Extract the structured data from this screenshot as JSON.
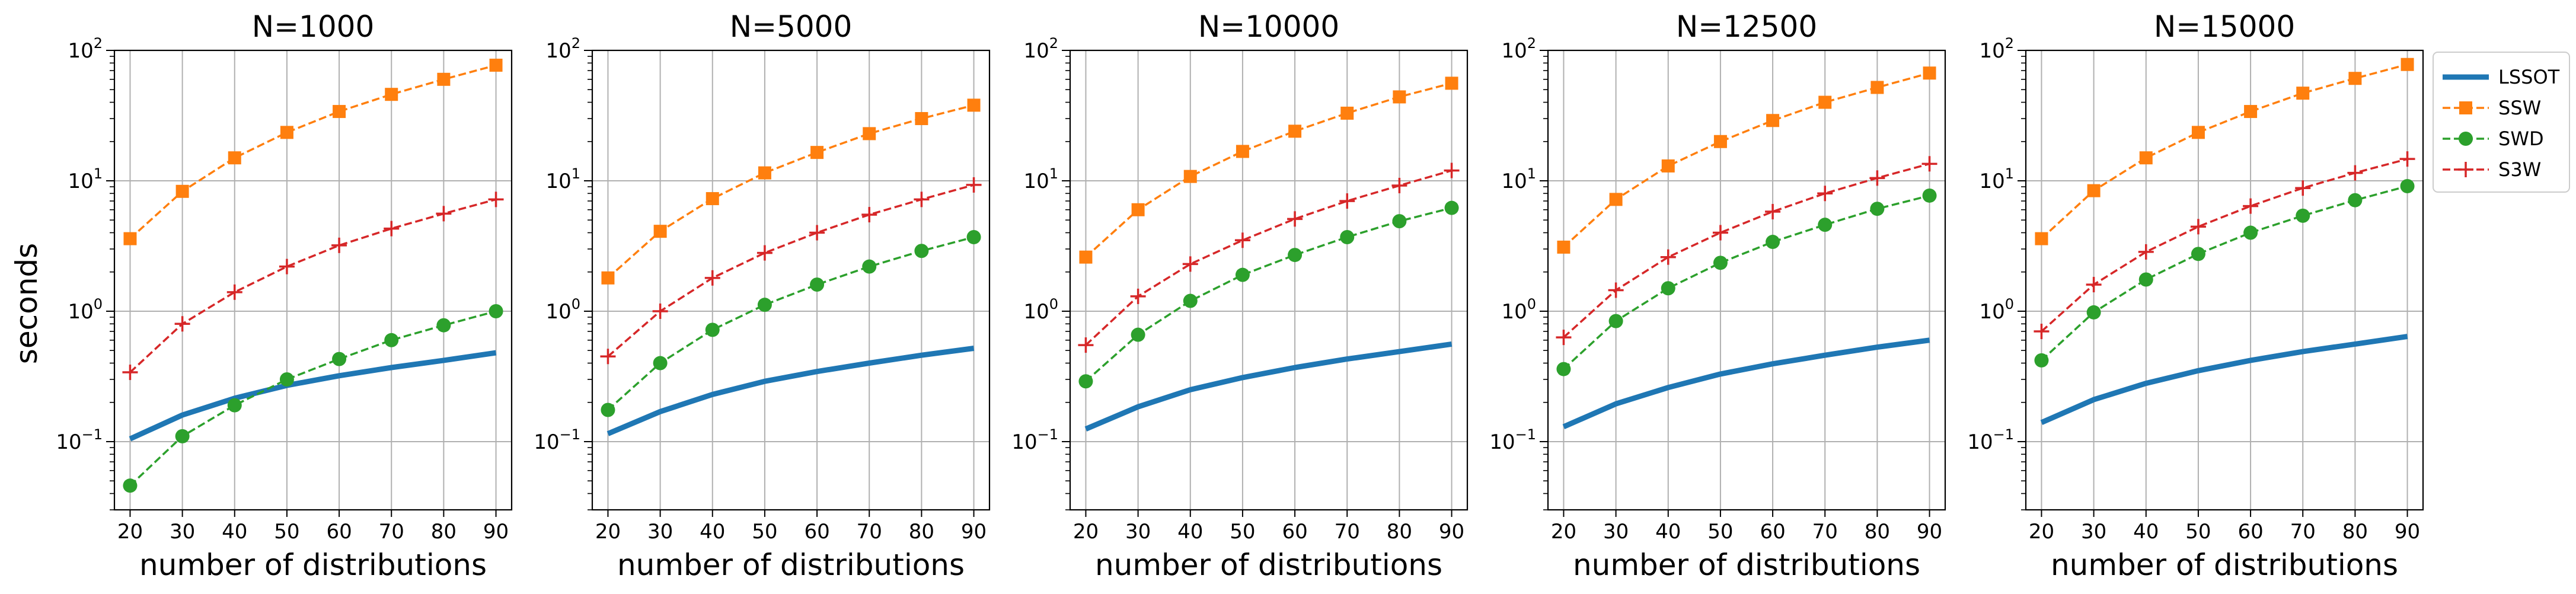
{
  "figure": {
    "ylabel": "seconds",
    "xlabel": "number of distributions",
    "yscale": "log",
    "ylim": [
      0.03,
      100
    ],
    "y_ticks": [
      {
        "value": 0.1,
        "base": "10",
        "exp": "−1"
      },
      {
        "value": 1,
        "base": "10",
        "exp": "0"
      },
      {
        "value": 10,
        "base": "10",
        "exp": "1"
      },
      {
        "value": 100,
        "base": "10",
        "exp": "2"
      }
    ],
    "x_ticks": [
      20,
      30,
      40,
      50,
      60,
      70,
      80,
      90
    ],
    "xlim": [
      17,
      93
    ],
    "grid": true,
    "legend_position": "outside-right",
    "legend": [
      {
        "name": "LSSOT",
        "color": "#1f77b4",
        "style": "solid",
        "marker": "none"
      },
      {
        "name": "SSW",
        "color": "#ff7f0e",
        "style": "dashed",
        "marker": "square"
      },
      {
        "name": "SWD",
        "color": "#2ca02c",
        "style": "dashed",
        "marker": "circle"
      },
      {
        "name": "S3W",
        "color": "#d62728",
        "style": "dashed",
        "marker": "plus"
      }
    ]
  },
  "chart_data": [
    {
      "type": "line",
      "title": "N=1000",
      "x": [
        20,
        30,
        40,
        50,
        60,
        70,
        80,
        90
      ],
      "series": [
        {
          "name": "LSSOT",
          "values": [
            0.105,
            0.16,
            0.215,
            0.27,
            0.32,
            0.37,
            0.42,
            0.48
          ]
        },
        {
          "name": "SSW",
          "values": [
            3.6,
            8.3,
            15.0,
            23.5,
            34.0,
            46.0,
            60.0,
            77.0
          ]
        },
        {
          "name": "SWD",
          "values": [
            0.046,
            0.11,
            0.19,
            0.3,
            0.43,
            0.6,
            0.78,
            1.0
          ]
        },
        {
          "name": "S3W",
          "values": [
            0.34,
            0.8,
            1.4,
            2.2,
            3.2,
            4.3,
            5.6,
            7.2
          ]
        }
      ]
    },
    {
      "type": "line",
      "title": "N=5000",
      "x": [
        20,
        30,
        40,
        50,
        60,
        70,
        80,
        90
      ],
      "series": [
        {
          "name": "LSSOT",
          "values": [
            0.115,
            0.17,
            0.23,
            0.29,
            0.345,
            0.4,
            0.46,
            0.52
          ]
        },
        {
          "name": "SSW",
          "values": [
            1.8,
            4.1,
            7.3,
            11.5,
            16.5,
            23.0,
            30.0,
            38.0
          ]
        },
        {
          "name": "SWD",
          "values": [
            0.175,
            0.4,
            0.72,
            1.12,
            1.6,
            2.2,
            2.9,
            3.7
          ]
        },
        {
          "name": "S3W",
          "values": [
            0.45,
            1.0,
            1.8,
            2.8,
            4.0,
            5.5,
            7.2,
            9.3
          ]
        }
      ]
    },
    {
      "type": "line",
      "title": "N=10000",
      "x": [
        20,
        30,
        40,
        50,
        60,
        70,
        80,
        90
      ],
      "series": [
        {
          "name": "LSSOT",
          "values": [
            0.125,
            0.185,
            0.25,
            0.31,
            0.37,
            0.43,
            0.49,
            0.56
          ]
        },
        {
          "name": "SSW",
          "values": [
            2.6,
            6.0,
            10.8,
            16.8,
            24.0,
            33.0,
            44.0,
            56.0
          ]
        },
        {
          "name": "SWD",
          "values": [
            0.29,
            0.66,
            1.2,
            1.9,
            2.7,
            3.7,
            4.9,
            6.2
          ]
        },
        {
          "name": "S3W",
          "values": [
            0.55,
            1.3,
            2.3,
            3.5,
            5.1,
            7.0,
            9.2,
            12.0
          ]
        }
      ]
    },
    {
      "type": "line",
      "title": "N=12500",
      "x": [
        20,
        30,
        40,
        50,
        60,
        70,
        80,
        90
      ],
      "series": [
        {
          "name": "LSSOT",
          "values": [
            0.13,
            0.195,
            0.26,
            0.33,
            0.395,
            0.46,
            0.53,
            0.6
          ]
        },
        {
          "name": "SSW",
          "values": [
            3.1,
            7.2,
            13.0,
            20.0,
            29.0,
            40.0,
            52.0,
            67.0
          ]
        },
        {
          "name": "SWD",
          "values": [
            0.36,
            0.84,
            1.5,
            2.35,
            3.4,
            4.6,
            6.1,
            7.7
          ]
        },
        {
          "name": "S3W",
          "values": [
            0.63,
            1.45,
            2.6,
            4.0,
            5.8,
            8.0,
            10.5,
            13.5
          ]
        }
      ]
    },
    {
      "type": "line",
      "title": "N=15000",
      "x": [
        20,
        30,
        40,
        50,
        60,
        70,
        80,
        90
      ],
      "series": [
        {
          "name": "LSSOT",
          "values": [
            0.14,
            0.21,
            0.28,
            0.35,
            0.42,
            0.49,
            0.56,
            0.64
          ]
        },
        {
          "name": "SSW",
          "values": [
            3.6,
            8.4,
            15.0,
            23.5,
            34.0,
            47.0,
            61.0,
            78.0
          ]
        },
        {
          "name": "SWD",
          "values": [
            0.42,
            0.98,
            1.75,
            2.75,
            4.0,
            5.4,
            7.1,
            9.1
          ]
        },
        {
          "name": "S3W",
          "values": [
            0.7,
            1.6,
            2.85,
            4.45,
            6.4,
            8.8,
            11.5,
            14.7
          ]
        }
      ]
    }
  ]
}
